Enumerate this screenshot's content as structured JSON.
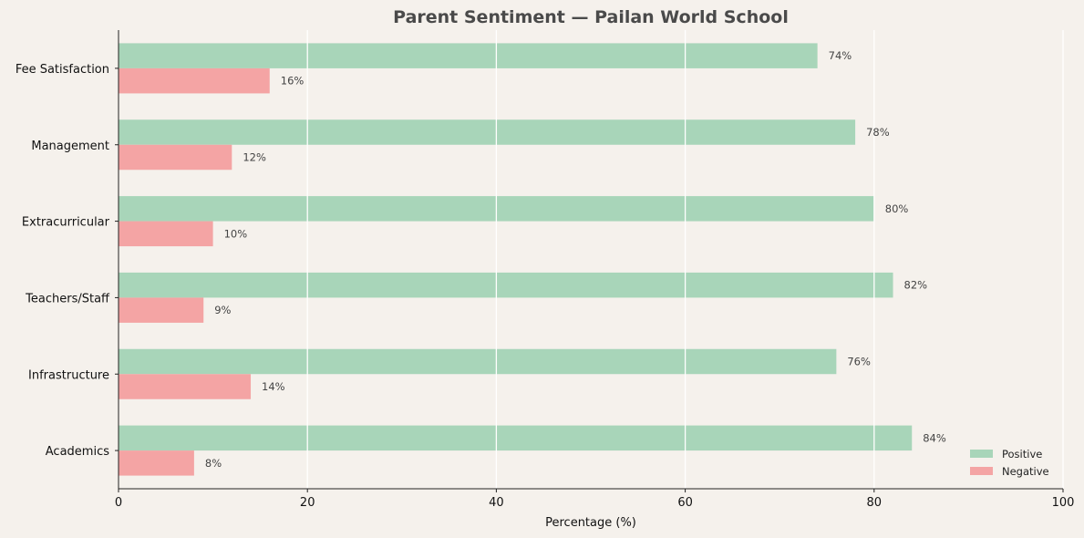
{
  "chart_data": {
    "type": "bar",
    "orientation": "horizontal",
    "title": "Parent Sentiment — Pailan World School",
    "xlabel": "Percentage (%)",
    "ylabel": "",
    "xlim": [
      0,
      100
    ],
    "xticks": [
      0,
      20,
      40,
      60,
      80,
      100
    ],
    "grid": "vertical",
    "legend_position": "bottom-right",
    "categories": [
      "Fee Satisfaction",
      "Management",
      "Extracurricular",
      "Teachers/Staff",
      "Infrastructure",
      "Academics"
    ],
    "series": [
      {
        "name": "Positive",
        "color": "#a8d5b9",
        "values": [
          74,
          78,
          80,
          82,
          76,
          84
        ]
      },
      {
        "name": "Negative",
        "color": "#f4a4a4",
        "values": [
          16,
          12,
          10,
          9,
          14,
          8
        ]
      }
    ],
    "value_suffix": "%"
  }
}
